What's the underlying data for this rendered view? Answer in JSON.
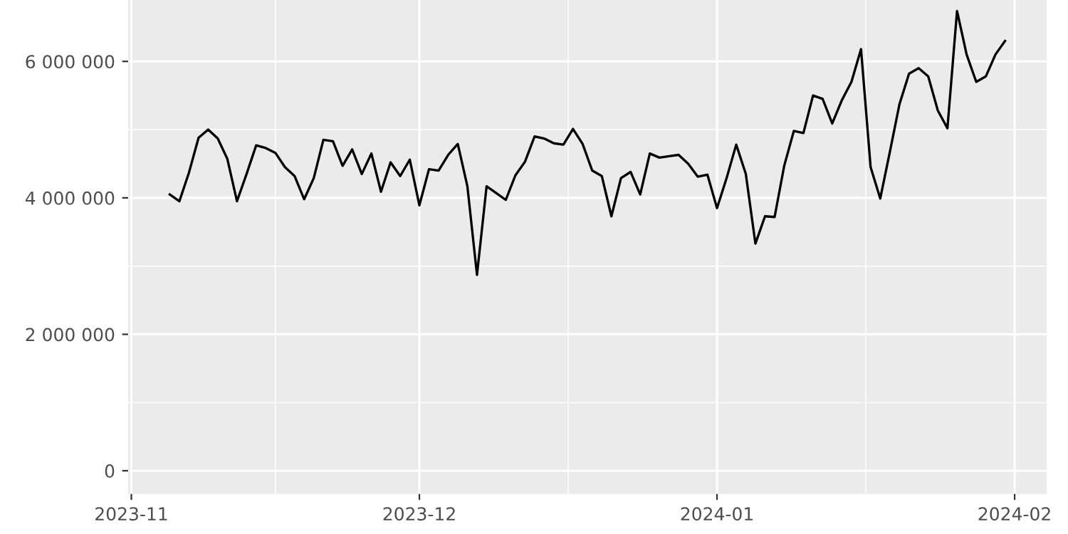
{
  "chart_data": {
    "type": "line",
    "x": [
      "2023-11-05",
      "2023-11-06",
      "2023-11-07",
      "2023-11-08",
      "2023-11-09",
      "2023-11-10",
      "2023-11-11",
      "2023-11-12",
      "2023-11-13",
      "2023-11-14",
      "2023-11-15",
      "2023-11-16",
      "2023-11-17",
      "2023-11-18",
      "2023-11-19",
      "2023-11-20",
      "2023-11-21",
      "2023-11-22",
      "2023-11-23",
      "2023-11-24",
      "2023-11-25",
      "2023-11-26",
      "2023-11-27",
      "2023-11-28",
      "2023-11-29",
      "2023-11-30",
      "2023-12-01",
      "2023-12-02",
      "2023-12-03",
      "2023-12-04",
      "2023-12-05",
      "2023-12-06",
      "2023-12-07",
      "2023-12-08",
      "2023-12-09",
      "2023-12-10",
      "2023-12-11",
      "2023-12-12",
      "2023-12-13",
      "2023-12-14",
      "2023-12-15",
      "2023-12-16",
      "2023-12-17",
      "2023-12-18",
      "2023-12-19",
      "2023-12-20",
      "2023-12-21",
      "2023-12-22",
      "2023-12-23",
      "2023-12-24",
      "2023-12-25",
      "2023-12-26",
      "2023-12-27",
      "2023-12-28",
      "2023-12-29",
      "2023-12-30",
      "2023-12-31",
      "2024-01-01",
      "2024-01-02",
      "2024-01-03",
      "2024-01-04",
      "2024-01-05",
      "2024-01-06",
      "2024-01-07",
      "2024-01-08",
      "2024-01-09",
      "2024-01-10",
      "2024-01-11",
      "2024-01-12",
      "2024-01-13",
      "2024-01-14",
      "2024-01-15",
      "2024-01-16",
      "2024-01-17",
      "2024-01-18",
      "2024-01-19",
      "2024-01-20",
      "2024-01-21",
      "2024-01-22",
      "2024-01-23",
      "2024-01-24",
      "2024-01-25",
      "2024-01-26",
      "2024-01-27",
      "2024-01-28",
      "2024-01-29",
      "2024-01-30",
      "2024-01-31"
    ],
    "series": [
      {
        "color": "#000000",
        "values": [
          4050000,
          3950000,
          4370000,
          4880000,
          5000000,
          4870000,
          4570000,
          3950000,
          4350000,
          4770000,
          4730000,
          4660000,
          4450000,
          4320000,
          3980000,
          4290000,
          4850000,
          4830000,
          4470000,
          4710000,
          4350000,
          4650000,
          4090000,
          4520000,
          4320000,
          4560000,
          3890000,
          4420000,
          4400000,
          4630000,
          4790000,
          4170000,
          2870000,
          4170000,
          4070000,
          3970000,
          4330000,
          4530000,
          4900000,
          4870000,
          4800000,
          4780000,
          5010000,
          4790000,
          4400000,
          4320000,
          3730000,
          4290000,
          4380000,
          4050000,
          4650000,
          4590000,
          4610000,
          4630000,
          4500000,
          4310000,
          4340000,
          3850000,
          4290000,
          4780000,
          4350000,
          3330000,
          3730000,
          3720000,
          4470000,
          4980000,
          4950000,
          5500000,
          5450000,
          5090000,
          5430000,
          5700000,
          6180000,
          4450000,
          3990000,
          4670000,
          5370000,
          5820000,
          5900000,
          5780000,
          5280000,
          5020000,
          6740000,
          6100000,
          5700000,
          5780000,
          6100000,
          6300000
        ]
      }
    ],
    "xlim": [
      "2023-10-31T16:00",
      "2024-02-04T08:00"
    ],
    "xticks": [
      {
        "value": "2023-11-01",
        "label": "2023-11"
      },
      {
        "value": "2023-12-01",
        "label": "2023-12"
      },
      {
        "value": "2024-01-01",
        "label": "2024-01"
      },
      {
        "value": "2024-02-01",
        "label": "2024-02"
      }
    ],
    "ylim": [
      -340000,
      6900000
    ],
    "yticks": [
      0,
      {
        "value": 2000000,
        "label": "2 000 000"
      },
      {
        "value": 4000000,
        "label": "4 000 000"
      },
      {
        "value": 6000000,
        "label": "6 000 000"
      }
    ],
    "grid": true
  }
}
